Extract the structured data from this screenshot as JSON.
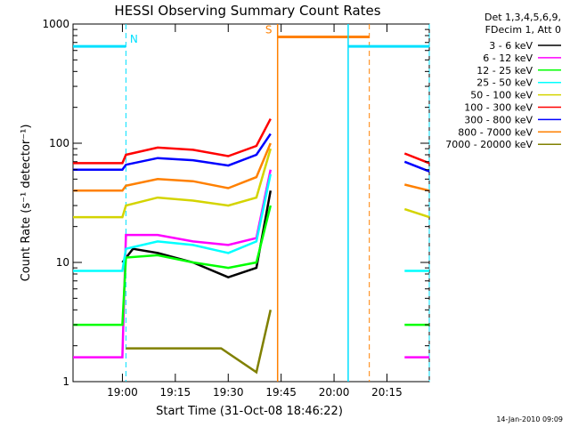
{
  "chart_data": {
    "type": "line",
    "title": "HESSI Observing Summary Count Rates",
    "xlabel": "Start Time (31-Oct-08 18:46:22)",
    "ylabel": "Count Rate (s⁻¹ detector⁻¹)",
    "y_scale": "log",
    "ylim": [
      1,
      1000
    ],
    "xlim": [
      "18:46",
      "20:27"
    ],
    "x_tick_labels": [
      "19:00",
      "19:15",
      "19:30",
      "19:45",
      "20:00",
      "20:15"
    ],
    "y_tick_labels": [
      "1",
      "10",
      "100",
      "1000"
    ],
    "grid": false,
    "legend_header": [
      "Det 1,3,4,5,6,9,",
      "FDecim 1, Att 0"
    ],
    "legend_placement": "right",
    "date_stamp": "14-Jan-2010 09:09",
    "gaps": [
      {
        "start": "19:43",
        "end": "20:20",
        "note": "no data"
      }
    ],
    "series": [
      {
        "name": "3 - 6 keV",
        "color": "#000000",
        "points": [
          [
            "19:00",
            10
          ],
          [
            "19:03",
            13
          ],
          [
            "19:10",
            12
          ],
          [
            "19:20",
            10
          ],
          [
            "19:30",
            7.5
          ],
          [
            "19:38",
            9
          ],
          [
            "19:42",
            40
          ]
        ]
      },
      {
        "name": "6 - 12 keV",
        "color": "#ff00ff",
        "points": [
          [
            "18:46",
            1.6
          ],
          [
            "19:00",
            1.6
          ],
          [
            "19:01",
            17
          ],
          [
            "19:10",
            17
          ],
          [
            "19:20",
            15
          ],
          [
            "19:30",
            14
          ],
          [
            "19:38",
            16
          ],
          [
            "19:42",
            60
          ],
          [
            "20:20",
            1.6
          ],
          [
            "20:27",
            1.6
          ]
        ]
      },
      {
        "name": "12 - 25 keV",
        "color": "#00ff00",
        "points": [
          [
            "18:46",
            3
          ],
          [
            "19:00",
            3
          ],
          [
            "19:01",
            11
          ],
          [
            "19:10",
            11.5
          ],
          [
            "19:20",
            10
          ],
          [
            "19:30",
            9
          ],
          [
            "19:38",
            10
          ],
          [
            "19:42",
            30
          ],
          [
            "20:20",
            3
          ],
          [
            "20:27",
            3
          ]
        ]
      },
      {
        "name": "25 - 50 keV",
        "color": "#00ffff",
        "points": [
          [
            "18:46",
            8.5
          ],
          [
            "19:00",
            8.5
          ],
          [
            "19:01",
            13
          ],
          [
            "19:10",
            15
          ],
          [
            "19:20",
            14
          ],
          [
            "19:30",
            12
          ],
          [
            "19:38",
            15
          ],
          [
            "19:42",
            55
          ],
          [
            "20:20",
            8.5
          ],
          [
            "20:27",
            8.5
          ]
        ]
      },
      {
        "name": "50 - 100 keV",
        "color": "#d4d400",
        "points": [
          [
            "18:46",
            24
          ],
          [
            "19:00",
            24
          ],
          [
            "19:01",
            30
          ],
          [
            "19:10",
            35
          ],
          [
            "19:20",
            33
          ],
          [
            "19:30",
            30
          ],
          [
            "19:38",
            35
          ],
          [
            "19:42",
            90
          ],
          [
            "20:20",
            28
          ],
          [
            "20:27",
            24
          ]
        ]
      },
      {
        "name": "100 - 300 keV",
        "color": "#ff0000",
        "points": [
          [
            "18:46",
            68
          ],
          [
            "19:00",
            68
          ],
          [
            "19:01",
            80
          ],
          [
            "19:10",
            92
          ],
          [
            "19:20",
            88
          ],
          [
            "19:30",
            78
          ],
          [
            "19:38",
            95
          ],
          [
            "19:42",
            160
          ],
          [
            "20:20",
            82
          ],
          [
            "20:27",
            68
          ]
        ]
      },
      {
        "name": "300 - 800 keV",
        "color": "#0000ff",
        "points": [
          [
            "18:46",
            60
          ],
          [
            "19:00",
            60
          ],
          [
            "19:01",
            66
          ],
          [
            "19:10",
            75
          ],
          [
            "19:20",
            72
          ],
          [
            "19:30",
            65
          ],
          [
            "19:38",
            80
          ],
          [
            "19:42",
            120
          ],
          [
            "20:20",
            70
          ],
          [
            "20:27",
            58
          ]
        ]
      },
      {
        "name": "800 - 7000 keV",
        "color": "#ff8000",
        "points": [
          [
            "18:46",
            40
          ],
          [
            "19:00",
            40
          ],
          [
            "19:01",
            44
          ],
          [
            "19:10",
            50
          ],
          [
            "19:20",
            48
          ],
          [
            "19:30",
            42
          ],
          [
            "19:38",
            52
          ],
          [
            "19:42",
            100
          ],
          [
            "20:20",
            45
          ],
          [
            "20:27",
            40
          ]
        ]
      },
      {
        "name": "7000 - 20000 keV",
        "color": "#808000",
        "points": [
          [
            "19:01",
            1.9
          ],
          [
            "19:10",
            1.9
          ],
          [
            "19:20",
            1.9
          ],
          [
            "19:28",
            1.9
          ],
          [
            "19:38",
            1.2
          ],
          [
            "19:42",
            4
          ]
        ]
      }
    ],
    "markers": [
      {
        "label": "N",
        "color": "#00e0ff",
        "type": "bar",
        "level": 650,
        "from": "18:46",
        "to": "19:01",
        "end_dashed": "19:01"
      },
      {
        "label": "S",
        "color": "#ff8000",
        "type": "bar",
        "level": 780,
        "from": "19:44",
        "to": "20:10",
        "start_solid": "19:44",
        "end_dashed": "20:10"
      },
      {
        "label": "",
        "color": "#00e0ff",
        "type": "bar",
        "level": 650,
        "from": "20:04",
        "to": "20:27",
        "start_solid": "20:04",
        "end_dashed": "20:27"
      }
    ]
  }
}
